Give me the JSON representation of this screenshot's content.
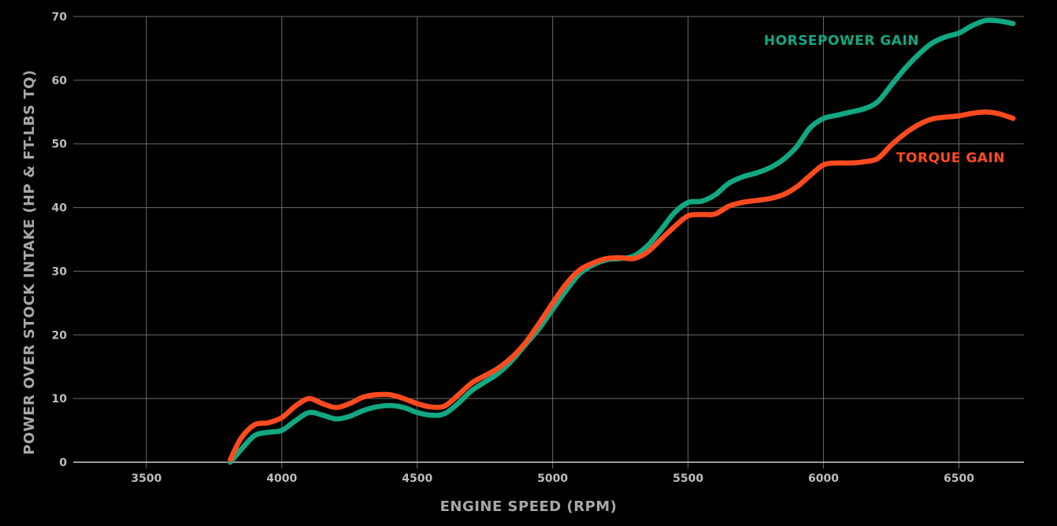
{
  "chart_data": {
    "type": "line",
    "xlabel": "ENGINE SPEED (RPM)",
    "ylabel": "POWER OVER STOCK INTAKE (HP & FT-LBS TQ)",
    "xlim": [
      3230,
      6740
    ],
    "ylim": [
      0,
      70
    ],
    "xticks": [
      3500,
      4000,
      4500,
      5000,
      5500,
      6000,
      6500
    ],
    "yticks": [
      0,
      10,
      20,
      30,
      40,
      50,
      60,
      70
    ],
    "grid": true,
    "series": [
      {
        "name": "HORSEPOWER GAIN",
        "color": "#12a882",
        "x": [
          3810,
          3850,
          3900,
          3950,
          4000,
          4050,
          4100,
          4150,
          4200,
          4250,
          4300,
          4350,
          4400,
          4450,
          4500,
          4550,
          4600,
          4650,
          4700,
          4750,
          4800,
          4850,
          4900,
          4950,
          5000,
          5050,
          5100,
          5150,
          5200,
          5250,
          5300,
          5350,
          5400,
          5450,
          5500,
          5550,
          5600,
          5650,
          5700,
          5750,
          5800,
          5850,
          5900,
          5950,
          6000,
          6050,
          6100,
          6150,
          6200,
          6250,
          6300,
          6350,
          6400,
          6450,
          6500,
          6550,
          6600,
          6650,
          6700
        ],
        "y": [
          0,
          2,
          4.2,
          4.7,
          5,
          6.5,
          7.8,
          7.4,
          6.8,
          7.2,
          8.1,
          8.7,
          8.9,
          8.6,
          7.8,
          7.4,
          7.6,
          9.2,
          11.2,
          12.6,
          14,
          16,
          18.5,
          21,
          24,
          27,
          29.6,
          31,
          31.8,
          32,
          32.4,
          34,
          36.5,
          39.2,
          40.8,
          41,
          42,
          43.8,
          44.8,
          45.4,
          46.2,
          47.5,
          49.5,
          52.5,
          54,
          54.5,
          55,
          55.5,
          56.6,
          59.2,
          61.8,
          64,
          65.8,
          66.8,
          67.4,
          68.6,
          69.4,
          69.3,
          68.9
        ]
      },
      {
        "name": "TORQUE GAIN",
        "color": "#ff4b1f",
        "x": [
          3810,
          3850,
          3900,
          3950,
          4000,
          4050,
          4100,
          4150,
          4200,
          4250,
          4300,
          4350,
          4400,
          4450,
          4500,
          4550,
          4600,
          4650,
          4700,
          4750,
          4800,
          4850,
          4900,
          4950,
          5000,
          5050,
          5100,
          5150,
          5200,
          5250,
          5300,
          5350,
          5400,
          5450,
          5500,
          5550,
          5600,
          5650,
          5700,
          5750,
          5800,
          5850,
          5900,
          5950,
          6000,
          6050,
          6100,
          6150,
          6200,
          6250,
          6300,
          6350,
          6400,
          6450,
          6500,
          6550,
          6600,
          6650,
          6700
        ],
        "y": [
          0.4,
          3.8,
          5.9,
          6.2,
          7,
          8.8,
          10,
          9.2,
          8.6,
          9.2,
          10.2,
          10.6,
          10.6,
          10,
          9.2,
          8.7,
          8.8,
          10.5,
          12.4,
          13.6,
          14.8,
          16.5,
          18.8,
          21.8,
          25,
          28,
          30.2,
          31.3,
          32,
          32.1,
          32,
          33,
          35,
          37,
          38.7,
          38.9,
          39,
          40.2,
          40.8,
          41.1,
          41.4,
          42,
          43.2,
          45,
          46.7,
          47,
          47,
          47.2,
          47.7,
          49.8,
          51.6,
          53,
          53.9,
          54.2,
          54.4,
          54.8,
          55,
          54.7,
          54
        ]
      }
    ]
  }
}
